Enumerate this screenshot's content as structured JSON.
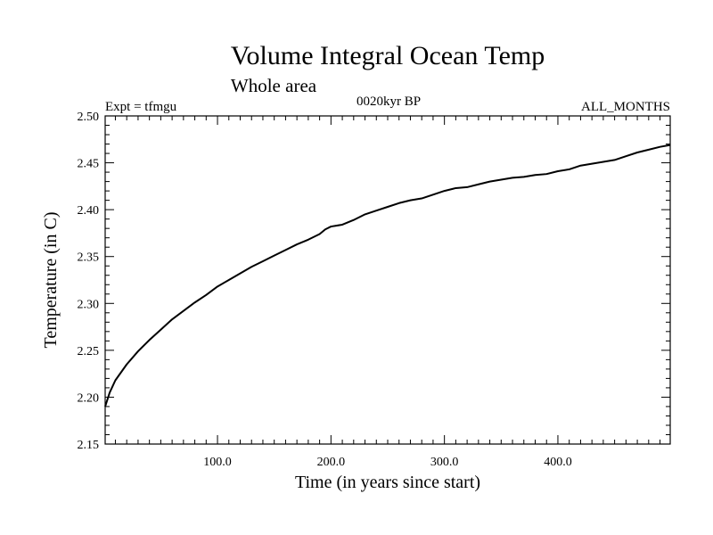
{
  "chart_data": {
    "type": "line",
    "title": "Volume Integral Ocean Temp",
    "subtitle": "Whole area",
    "experiment_label": "Expt = tfmgu",
    "period_label": "0020kyr BP",
    "months_label": "ALL_MONTHS",
    "xlabel": "Time (in years since start)",
    "ylabel": "Temperature (in C)",
    "xlim": [
      1,
      499
    ],
    "ylim": [
      2.15,
      2.5
    ],
    "grid": false,
    "x_ticks": [
      {
        "value": 100,
        "label": "100.0"
      },
      {
        "value": 200,
        "label": "200.0"
      },
      {
        "value": 300,
        "label": "300.0"
      },
      {
        "value": 400,
        "label": "400.0"
      }
    ],
    "y_ticks": [
      {
        "value": 2.15,
        "label": "2.15"
      },
      {
        "value": 2.2,
        "label": "2.20"
      },
      {
        "value": 2.25,
        "label": "2.25"
      },
      {
        "value": 2.3,
        "label": "2.30"
      },
      {
        "value": 2.35,
        "label": "2.35"
      },
      {
        "value": 2.4,
        "label": "2.40"
      },
      {
        "value": 2.45,
        "label": "2.45"
      },
      {
        "value": 2.5,
        "label": "2.50"
      }
    ],
    "series": [
      {
        "color": "#000000",
        "x": [
          1,
          5,
          10,
          20,
          30,
          40,
          50,
          60,
          70,
          80,
          90,
          100,
          110,
          120,
          130,
          140,
          150,
          160,
          170,
          180,
          190,
          195,
          200,
          210,
          220,
          230,
          240,
          250,
          260,
          270,
          280,
          290,
          300,
          310,
          320,
          330,
          340,
          350,
          360,
          370,
          380,
          390,
          400,
          410,
          420,
          430,
          440,
          450,
          460,
          470,
          480,
          490,
          499
        ],
        "y": [
          2.19,
          2.205,
          2.218,
          2.235,
          2.249,
          2.261,
          2.272,
          2.283,
          2.292,
          2.301,
          2.309,
          2.318,
          2.325,
          2.332,
          2.339,
          2.345,
          2.351,
          2.357,
          2.363,
          2.368,
          2.374,
          2.379,
          2.382,
          2.384,
          2.389,
          2.395,
          2.399,
          2.403,
          2.407,
          2.41,
          2.412,
          2.416,
          2.42,
          2.423,
          2.424,
          2.427,
          2.43,
          2.432,
          2.434,
          2.435,
          2.437,
          2.438,
          2.441,
          2.443,
          2.447,
          2.449,
          2.451,
          2.453,
          2.457,
          2.461,
          2.464,
          2.467,
          2.469
        ]
      }
    ]
  }
}
